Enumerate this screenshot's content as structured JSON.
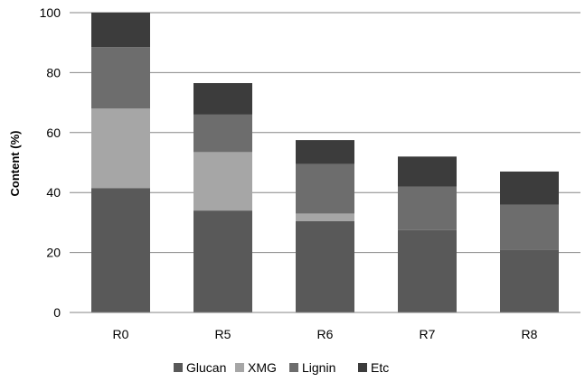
{
  "chart_data": {
    "type": "bar",
    "stacked": true,
    "categories": [
      "R0",
      "R5",
      "R6",
      "R7",
      "R8"
    ],
    "series": [
      {
        "name": "Glucan",
        "values": [
          41.5,
          34,
          30.5,
          27.5,
          21
        ],
        "color": "#595959"
      },
      {
        "name": "XMG",
        "values": [
          26.5,
          19.5,
          2.5,
          0,
          0
        ],
        "color": "#a6a6a6"
      },
      {
        "name": "Lignin",
        "values": [
          20.5,
          12.5,
          16.5,
          14.5,
          15
        ],
        "color": "#6d6d6d"
      },
      {
        "name": "Etc",
        "values": [
          11.5,
          10.5,
          8,
          10,
          11
        ],
        "color": "#3c3c3c"
      }
    ],
    "title": "",
    "xlabel": "",
    "ylabel": "Content (%)",
    "ylim": [
      0,
      100
    ],
    "yticks": [
      0,
      20,
      40,
      60,
      80,
      100
    ],
    "grid": true,
    "legend_position": "bottom"
  }
}
